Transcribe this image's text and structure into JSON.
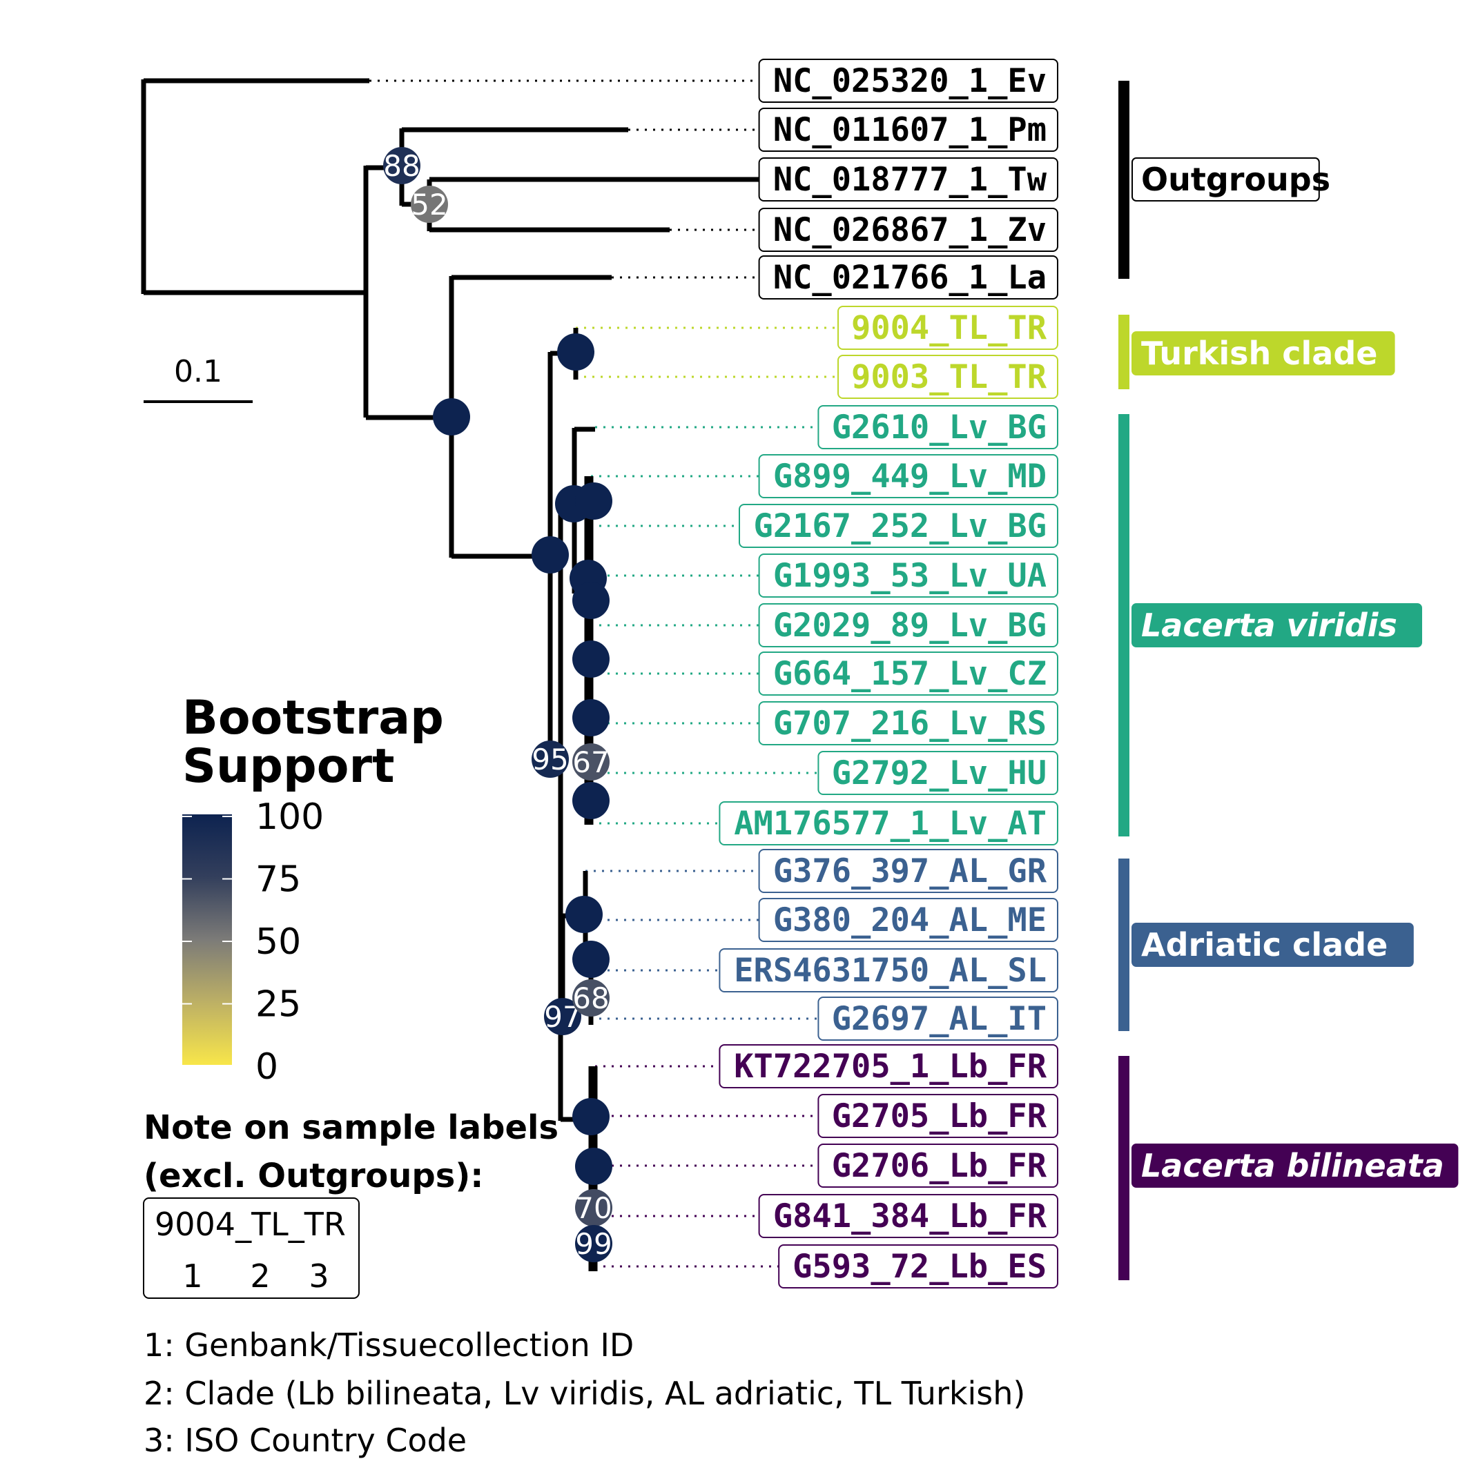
{
  "scale_bar": {
    "label": "0.1"
  },
  "tips": [
    {
      "label": "NC_025320_1_Ev",
      "group": "outgroups"
    },
    {
      "label": "NC_011607_1_Pm",
      "group": "outgroups"
    },
    {
      "label": "NC_018777_1_Tw",
      "group": "outgroups"
    },
    {
      "label": "NC_026867_1_Zv",
      "group": "outgroups"
    },
    {
      "label": "NC_021766_1_La",
      "group": "outgroups"
    },
    {
      "label": "9004_TL_TR",
      "group": "turkish"
    },
    {
      "label": "9003_TL_TR",
      "group": "turkish"
    },
    {
      "label": "G2610_Lv_BG",
      "group": "viridis"
    },
    {
      "label": "G899_449_Lv_MD",
      "group": "viridis"
    },
    {
      "label": "G2167_252_Lv_BG",
      "group": "viridis"
    },
    {
      "label": "G1993_53_Lv_UA",
      "group": "viridis"
    },
    {
      "label": "G2029_89_Lv_BG",
      "group": "viridis"
    },
    {
      "label": "G664_157_Lv_CZ",
      "group": "viridis"
    },
    {
      "label": "G707_216_Lv_RS",
      "group": "viridis"
    },
    {
      "label": "G2792_Lv_HU",
      "group": "viridis"
    },
    {
      "label": "AM176577_1_Lv_AT",
      "group": "viridis"
    },
    {
      "label": "G376_397_AL_GR",
      "group": "adriatic"
    },
    {
      "label": "G380_204_AL_ME",
      "group": "adriatic"
    },
    {
      "label": "ERS4631750_AL_SL",
      "group": "adriatic"
    },
    {
      "label": "G2697_AL_IT",
      "group": "adriatic"
    },
    {
      "label": "KT722705_1_Lb_FR",
      "group": "bilineata"
    },
    {
      "label": "G2705_Lb_FR",
      "group": "bilineata"
    },
    {
      "label": "G2706_Lb_FR",
      "group": "bilineata"
    },
    {
      "label": "G841_384_Lb_FR",
      "group": "bilineata"
    },
    {
      "label": "G593_72_Lb_ES",
      "group": "bilineata"
    }
  ],
  "groups": {
    "outgroups": {
      "label": "Outgroups",
      "color": "#000000",
      "italic": false
    },
    "turkish": {
      "label": "Turkish clade",
      "color": "#BDD72B",
      "italic": false
    },
    "viridis": {
      "label": "Lacerta viridis",
      "color": "#22A884",
      "italic": true
    },
    "adriatic": {
      "label": "Adriatic clade",
      "color": "#3B6190",
      "italic": false
    },
    "bilineata": {
      "label": "Lacerta bilineata",
      "color": "#440154",
      "italic": true
    }
  },
  "bootstrap_nodes": [
    {
      "value": 88,
      "show_label": true
    },
    {
      "value": 52,
      "show_label": true
    },
    {
      "value": 100,
      "show_label": false
    },
    {
      "value": 100,
      "show_label": false
    },
    {
      "value": 100,
      "show_label": false
    },
    {
      "value": 95,
      "show_label": true
    },
    {
      "value": 67,
      "show_label": true
    },
    {
      "value": 97,
      "show_label": true
    },
    {
      "value": 68,
      "show_label": true
    },
    {
      "value": 70,
      "show_label": true
    },
    {
      "value": 99,
      "show_label": true
    }
  ],
  "legend": {
    "title_line1": "Bootstrap",
    "title_line2": "Support",
    "ticks": [
      "100",
      "75",
      "50",
      "25",
      "0"
    ],
    "color_high": "#0D2350",
    "color_mid": "#7C7B78",
    "color_low": "#F8E64A"
  },
  "note": {
    "title_line1": "Note on sample labels",
    "title_line2": "(excl. Outgroups):",
    "example_label": "9004_TL_TR",
    "example_numbers": [
      "1",
      "2",
      "3"
    ],
    "lines": [
      "1: Genbank/Tissuecollection ID",
      "2: Clade (Lb bilineata, Lv viridis, AL adriatic, TL Turkish)",
      "3: ISO Country Code"
    ]
  }
}
